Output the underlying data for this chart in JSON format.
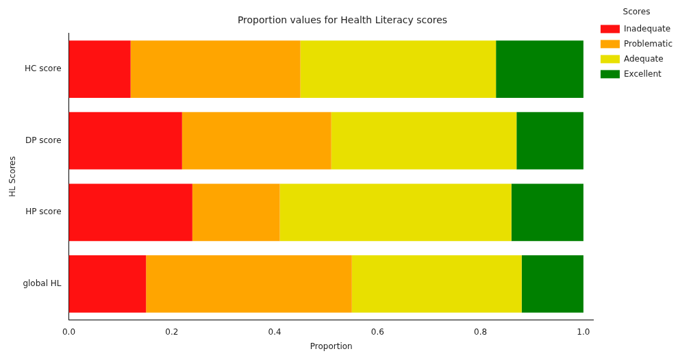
{
  "chart_data": {
    "type": "bar",
    "orientation": "horizontal",
    "stacked": true,
    "title": "Proportion values for Health Literacy scores",
    "xlabel": "Proportion",
    "ylabel": "HL Scores",
    "legend_title": "Scores",
    "legend": "top right",
    "grid": false,
    "categories": [
      "HC score",
      "DP score",
      "HP score",
      "global HL"
    ],
    "xlim": [
      0,
      1.02
    ],
    "xticks": [
      {
        "value": 0,
        "label": "0.0"
      },
      0.2,
      0.4,
      0.6,
      0.8,
      {
        "value": 1,
        "label": "1.0"
      }
    ],
    "series": [
      {
        "name": "Inadequate",
        "color": "#ff1111",
        "values": [
          0.12,
          0.22,
          0.24,
          0.15
        ]
      },
      {
        "name": "Problematic",
        "color": "#ffa500",
        "values": [
          0.33,
          0.29,
          0.17,
          0.4
        ]
      },
      {
        "name": "Adequate",
        "color": "#e8e000",
        "values": [
          0.38,
          0.36,
          0.45,
          0.33
        ]
      },
      {
        "name": "Excellent",
        "color": "#008000",
        "values": [
          0.17,
          0.13,
          0.14,
          0.12
        ]
      }
    ]
  }
}
